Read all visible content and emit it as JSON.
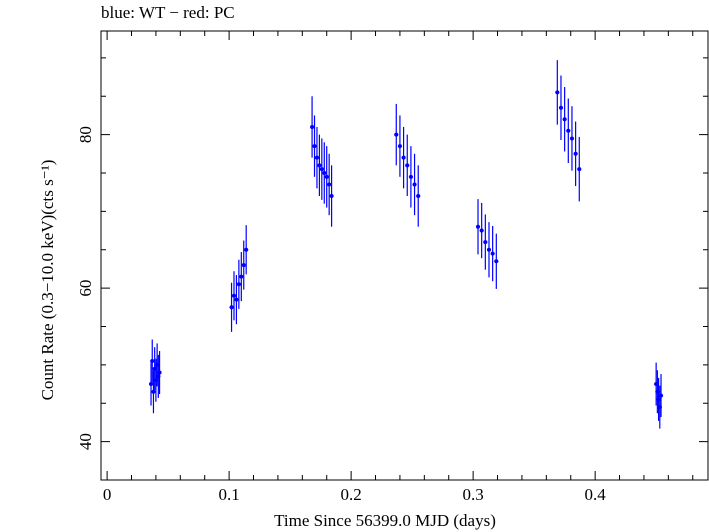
{
  "chart_data": {
    "type": "scatter",
    "title": "blue: WT − red: PC",
    "xlabel": "Time Since 56399.0 MJD (days)",
    "ylabel": "Count Rate (0.3−10.0 keV)(cts s⁻¹)",
    "xlim": [
      -0.005,
      0.4925
    ],
    "ylim": [
      35,
      93.5
    ],
    "x_ticks": [
      0,
      0.1,
      0.2,
      0.3,
      0.4
    ],
    "x_tick_labels": [
      "0",
      "0.1",
      "0.2",
      "0.3",
      "0.4"
    ],
    "y_ticks": [
      40,
      60,
      80
    ],
    "y_tick_labels": [
      "40",
      "60",
      "80"
    ],
    "grid": false,
    "legend": "none",
    "series": [
      {
        "color": "#0000ff",
        "marker": "point with vertical error bar",
        "x": [
          0.036,
          0.037,
          0.038,
          0.039,
          0.04,
          0.041,
          0.042,
          0.043,
          0.102,
          0.104,
          0.106,
          0.108,
          0.11,
          0.112,
          0.114,
          0.168,
          0.17,
          0.172,
          0.174,
          0.176,
          0.178,
          0.18,
          0.182,
          0.184,
          0.237,
          0.24,
          0.243,
          0.246,
          0.249,
          0.252,
          0.255,
          0.304,
          0.307,
          0.31,
          0.313,
          0.316,
          0.319,
          0.369,
          0.372,
          0.375,
          0.378,
          0.381,
          0.384,
          0.387,
          0.45,
          0.451,
          0.452,
          0.453,
          0.454
        ],
        "y": [
          47.5,
          50.5,
          46.5,
          49.5,
          48.0,
          50.0,
          48.5,
          49.0,
          57.5,
          59.0,
          58.5,
          60.5,
          61.5,
          63.0,
          65.0,
          81.0,
          78.5,
          77.0,
          76.0,
          75.5,
          75.0,
          74.5,
          73.5,
          72.0,
          80.0,
          78.5,
          77.0,
          76.0,
          74.5,
          73.5,
          72.0,
          68.0,
          67.5,
          66.0,
          65.0,
          64.5,
          63.5,
          85.5,
          83.5,
          82.0,
          80.5,
          79.5,
          77.5,
          75.5,
          47.5,
          46.5,
          45.5,
          44.5,
          46.0
        ],
        "error": [
          2.8,
          2.8,
          2.8,
          2.8,
          2.8,
          2.8,
          2.8,
          2.8,
          3.2,
          3.2,
          3.2,
          3.2,
          3.2,
          3.2,
          3.2,
          4.0,
          4.0,
          4.0,
          4.0,
          4.0,
          4.0,
          4.0,
          4.0,
          4.0,
          4.0,
          4.0,
          4.0,
          4.0,
          4.0,
          4.0,
          4.0,
          3.6,
          3.6,
          3.6,
          3.6,
          3.6,
          3.6,
          4.2,
          4.2,
          4.2,
          4.2,
          4.2,
          4.2,
          4.2,
          2.8,
          2.8,
          2.8,
          2.8,
          2.8
        ]
      }
    ]
  }
}
